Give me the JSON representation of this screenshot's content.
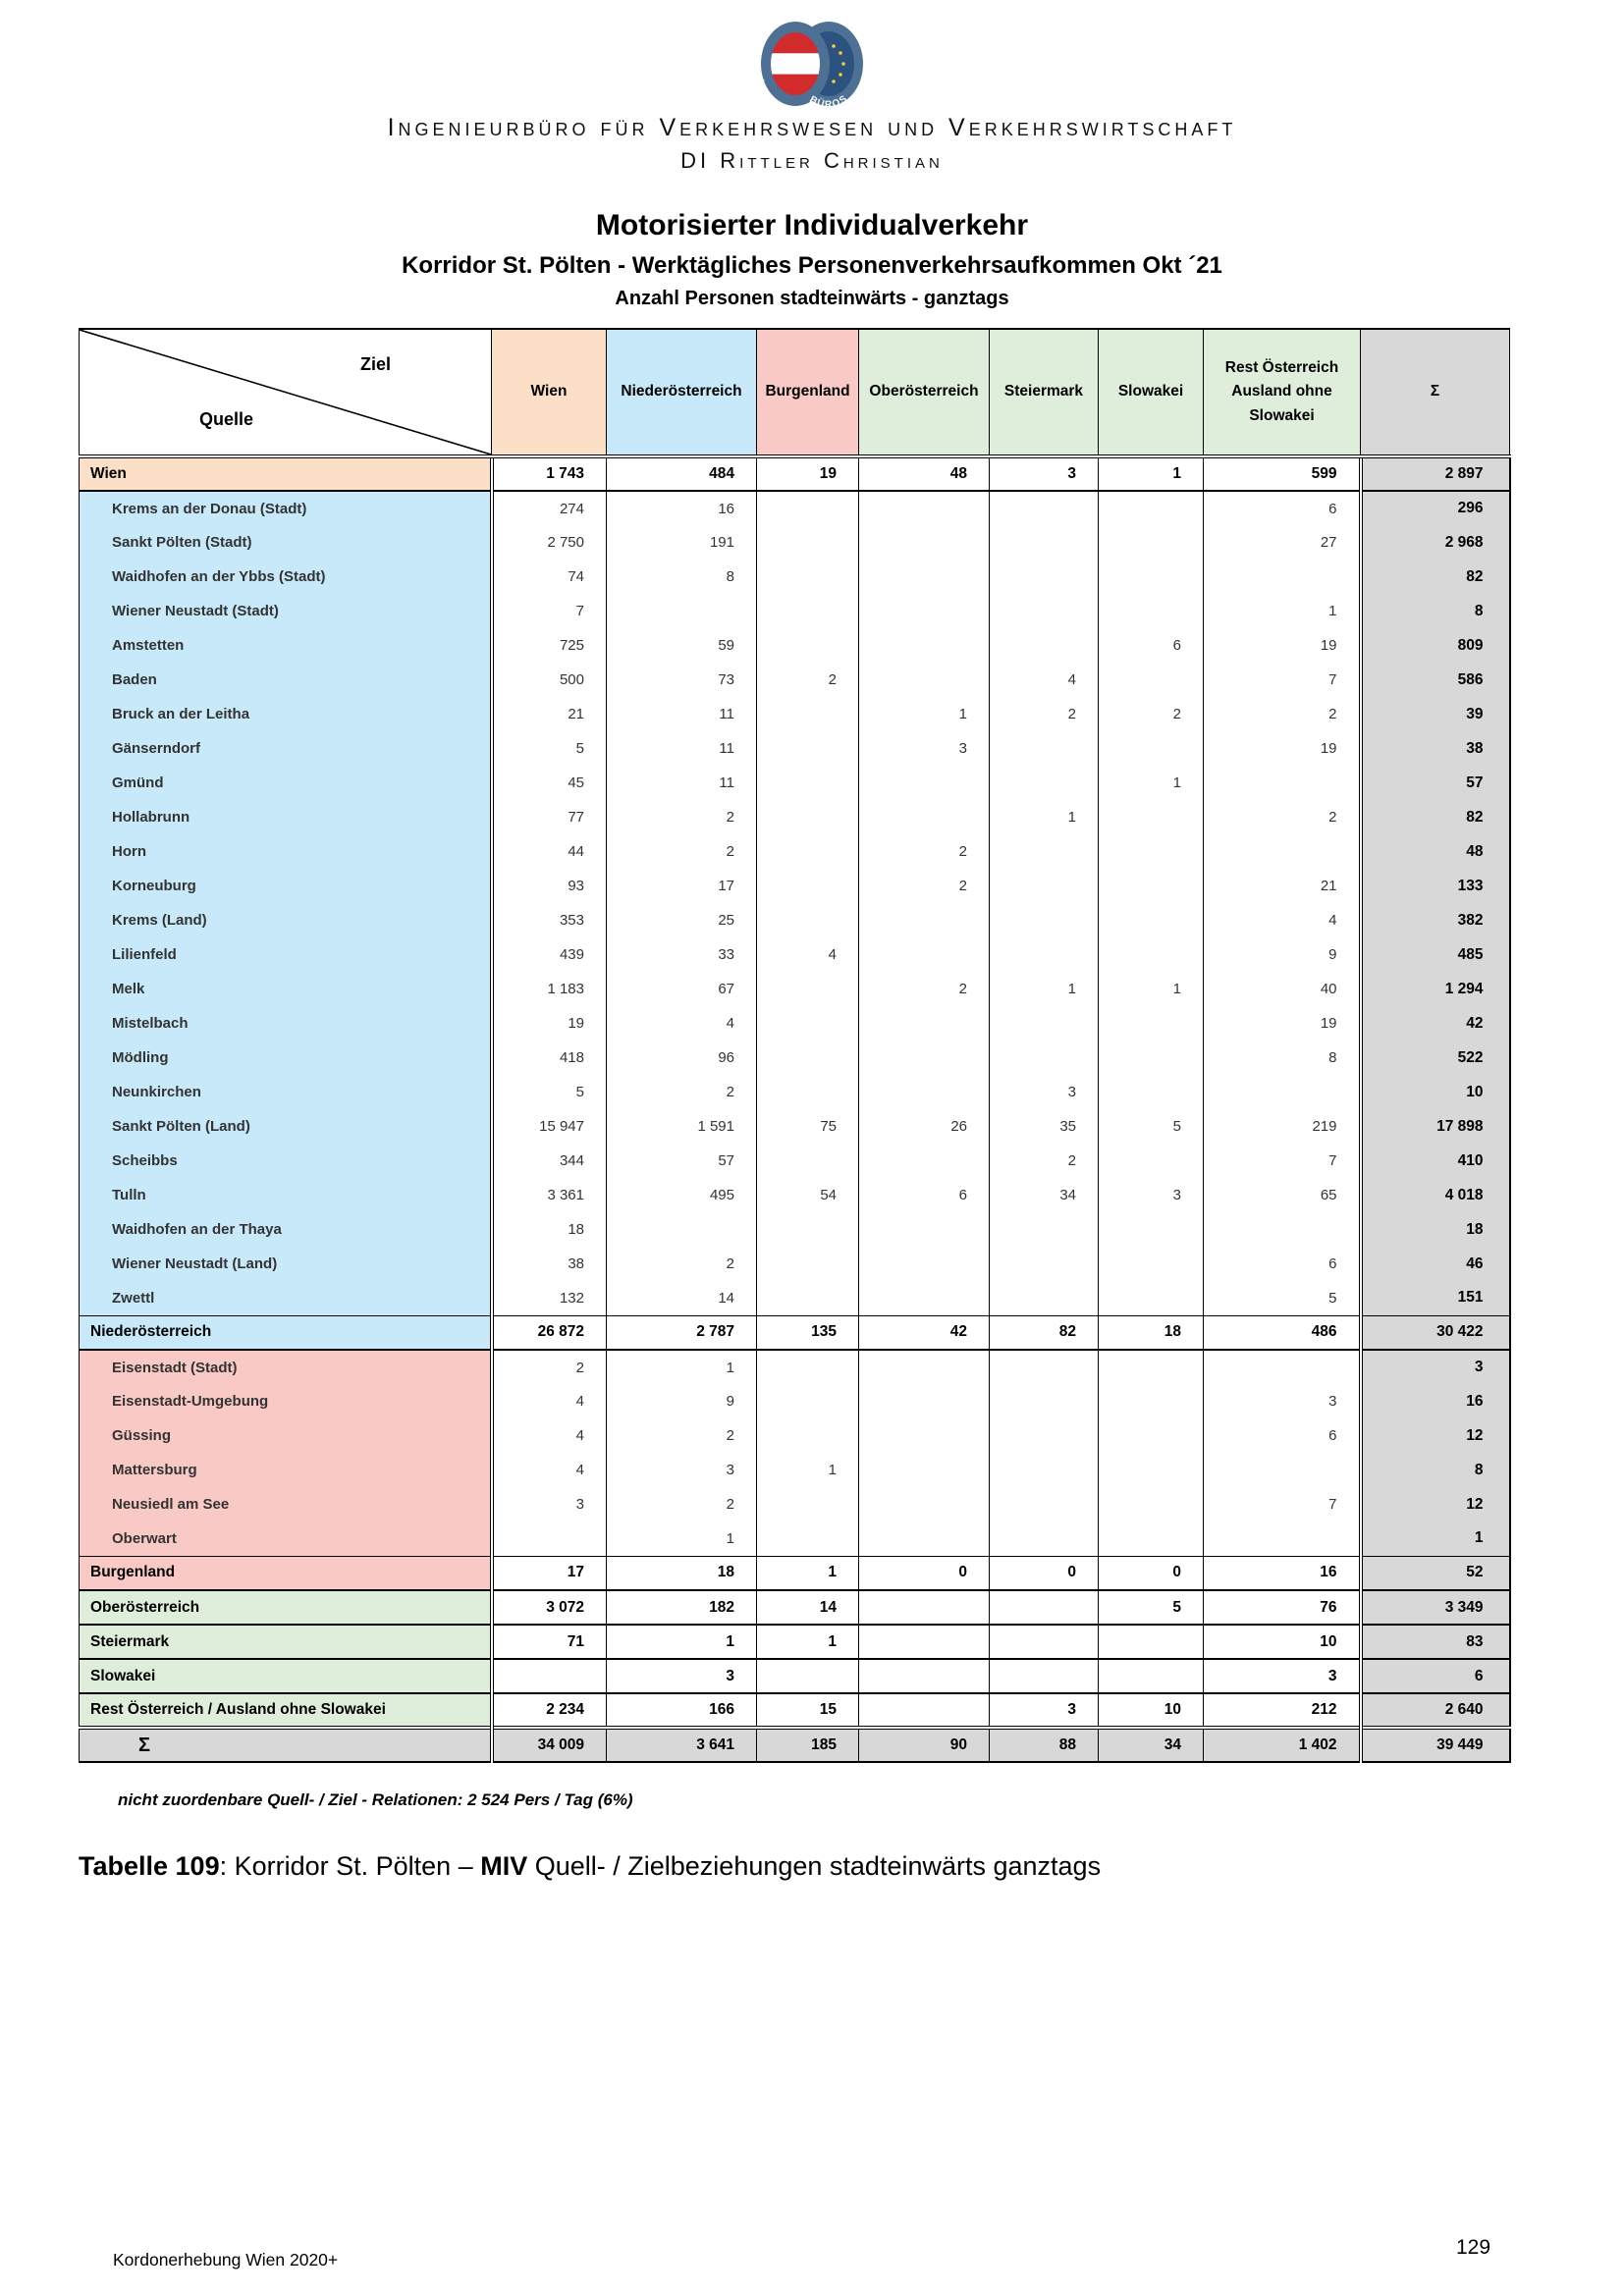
{
  "branding": {
    "logo": {
      "left_arc_text": "INGENIEUR",
      "right_arc_text": "BÜROS"
    },
    "company_line1": "Ingenieurbüro für Verkehrswesen und Verkehrswirtschaft",
    "company_line2": "DI Rittler Christian"
  },
  "titles": {
    "main": "Motorisierter Individualverkehr",
    "subtitle": "Korridor St. Pölten - Werktägliches Personenverkehrsaufkommen Okt ´21",
    "subsubtitle": "Anzahl Personen stadteinwärts - ganztags"
  },
  "colors": {
    "wien": "#FBE0C7",
    "noe": "#C8E9FA",
    "bgl": "#F9C9C6",
    "green": "#DFEEDA",
    "total": "#D8D8D8"
  },
  "table": {
    "corner": {
      "top_right": "Ziel",
      "bottom_left": "Quelle"
    },
    "columns": [
      {
        "label": "Wien",
        "group": "wien"
      },
      {
        "label": "Niederösterreich",
        "group": "noe"
      },
      {
        "label": "Burgenland",
        "group": "bgl"
      },
      {
        "label": "Oberösterreich",
        "group": "green"
      },
      {
        "label": "Steiermark",
        "group": "green"
      },
      {
        "label": "Slowakei",
        "group": "green"
      },
      {
        "label": "Rest Österreich\nAusland ohne\nSlowakei",
        "group": "green"
      },
      {
        "label": "Σ",
        "group": "total"
      }
    ],
    "rows": [
      {
        "label": "Wien",
        "group": "wien",
        "summary": true,
        "values": [
          "1 743",
          "484",
          "19",
          "48",
          "3",
          "1",
          "599"
        ],
        "sum": "2 897"
      },
      {
        "label": "Krems an der Donau (Stadt)",
        "group": "noe",
        "summary": false,
        "values": [
          "274",
          "16",
          "",
          "",
          "",
          "",
          "6"
        ],
        "sum": "296"
      },
      {
        "label": "Sankt Pölten (Stadt)",
        "group": "noe",
        "summary": false,
        "values": [
          "2 750",
          "191",
          "",
          "",
          "",
          "",
          "27"
        ],
        "sum": "2 968"
      },
      {
        "label": "Waidhofen an der Ybbs (Stadt)",
        "group": "noe",
        "summary": false,
        "values": [
          "74",
          "8",
          "",
          "",
          "",
          "",
          ""
        ],
        "sum": "82"
      },
      {
        "label": "Wiener Neustadt (Stadt)",
        "group": "noe",
        "summary": false,
        "values": [
          "7",
          "",
          "",
          "",
          "",
          "",
          "1"
        ],
        "sum": "8"
      },
      {
        "label": "Amstetten",
        "group": "noe",
        "summary": false,
        "values": [
          "725",
          "59",
          "",
          "",
          "",
          "6",
          "19"
        ],
        "sum": "809"
      },
      {
        "label": "Baden",
        "group": "noe",
        "summary": false,
        "values": [
          "500",
          "73",
          "2",
          "",
          "4",
          "",
          "7"
        ],
        "sum": "586"
      },
      {
        "label": "Bruck an der Leitha",
        "group": "noe",
        "summary": false,
        "values": [
          "21",
          "11",
          "",
          "1",
          "2",
          "2",
          "2"
        ],
        "sum": "39"
      },
      {
        "label": "Gänserndorf",
        "group": "noe",
        "summary": false,
        "values": [
          "5",
          "11",
          "",
          "3",
          "",
          "",
          "19"
        ],
        "sum": "38"
      },
      {
        "label": "Gmünd",
        "group": "noe",
        "summary": false,
        "values": [
          "45",
          "11",
          "",
          "",
          "",
          "1",
          ""
        ],
        "sum": "57"
      },
      {
        "label": "Hollabrunn",
        "group": "noe",
        "summary": false,
        "values": [
          "77",
          "2",
          "",
          "",
          "1",
          "",
          "2"
        ],
        "sum": "82"
      },
      {
        "label": "Horn",
        "group": "noe",
        "summary": false,
        "values": [
          "44",
          "2",
          "",
          "2",
          "",
          "",
          ""
        ],
        "sum": "48"
      },
      {
        "label": "Korneuburg",
        "group": "noe",
        "summary": false,
        "values": [
          "93",
          "17",
          "",
          "2",
          "",
          "",
          "21"
        ],
        "sum": "133"
      },
      {
        "label": "Krems (Land)",
        "group": "noe",
        "summary": false,
        "values": [
          "353",
          "25",
          "",
          "",
          "",
          "",
          "4"
        ],
        "sum": "382"
      },
      {
        "label": "Lilienfeld",
        "group": "noe",
        "summary": false,
        "values": [
          "439",
          "33",
          "4",
          "",
          "",
          "",
          "9"
        ],
        "sum": "485"
      },
      {
        "label": "Melk",
        "group": "noe",
        "summary": false,
        "values": [
          "1 183",
          "67",
          "",
          "2",
          "1",
          "1",
          "40"
        ],
        "sum": "1 294"
      },
      {
        "label": "Mistelbach",
        "group": "noe",
        "summary": false,
        "values": [
          "19",
          "4",
          "",
          "",
          "",
          "",
          "19"
        ],
        "sum": "42"
      },
      {
        "label": "Mödling",
        "group": "noe",
        "summary": false,
        "values": [
          "418",
          "96",
          "",
          "",
          "",
          "",
          "8"
        ],
        "sum": "522"
      },
      {
        "label": "Neunkirchen",
        "group": "noe",
        "summary": false,
        "values": [
          "5",
          "2",
          "",
          "",
          "3",
          "",
          ""
        ],
        "sum": "10"
      },
      {
        "label": "Sankt Pölten (Land)",
        "group": "noe",
        "summary": false,
        "values": [
          "15 947",
          "1 591",
          "75",
          "26",
          "35",
          "5",
          "219"
        ],
        "sum": "17 898"
      },
      {
        "label": "Scheibbs",
        "group": "noe",
        "summary": false,
        "values": [
          "344",
          "57",
          "",
          "",
          "2",
          "",
          "7"
        ],
        "sum": "410"
      },
      {
        "label": "Tulln",
        "group": "noe",
        "summary": false,
        "values": [
          "3 361",
          "495",
          "54",
          "6",
          "34",
          "3",
          "65"
        ],
        "sum": "4 018"
      },
      {
        "label": "Waidhofen an der Thaya",
        "group": "noe",
        "summary": false,
        "values": [
          "18",
          "",
          "",
          "",
          "",
          "",
          ""
        ],
        "sum": "18"
      },
      {
        "label": "Wiener Neustadt (Land)",
        "group": "noe",
        "summary": false,
        "values": [
          "38",
          "2",
          "",
          "",
          "",
          "",
          "6"
        ],
        "sum": "46"
      },
      {
        "label": "Zwettl",
        "group": "noe",
        "summary": false,
        "values": [
          "132",
          "14",
          "",
          "",
          "",
          "",
          "5"
        ],
        "sum": "151"
      },
      {
        "label": "Niederösterreich",
        "group": "noe",
        "summary": true,
        "values": [
          "26 872",
          "2 787",
          "135",
          "42",
          "82",
          "18",
          "486"
        ],
        "sum": "30 422"
      },
      {
        "label": "Eisenstadt (Stadt)",
        "group": "bgl",
        "summary": false,
        "values": [
          "2",
          "1",
          "",
          "",
          "",
          "",
          ""
        ],
        "sum": "3"
      },
      {
        "label": "Eisenstadt-Umgebung",
        "group": "bgl",
        "summary": false,
        "values": [
          "4",
          "9",
          "",
          "",
          "",
          "",
          "3"
        ],
        "sum": "16"
      },
      {
        "label": "Güssing",
        "group": "bgl",
        "summary": false,
        "values": [
          "4",
          "2",
          "",
          "",
          "",
          "",
          "6"
        ],
        "sum": "12"
      },
      {
        "label": "Mattersburg",
        "group": "bgl",
        "summary": false,
        "values": [
          "4",
          "3",
          "1",
          "",
          "",
          "",
          ""
        ],
        "sum": "8"
      },
      {
        "label": "Neusiedl am See",
        "group": "bgl",
        "summary": false,
        "values": [
          "3",
          "2",
          "",
          "",
          "",
          "",
          "7"
        ],
        "sum": "12"
      },
      {
        "label": "Oberwart",
        "group": "bgl",
        "summary": false,
        "values": [
          "",
          "1",
          "",
          "",
          "",
          "",
          ""
        ],
        "sum": "1"
      },
      {
        "label": "Burgenland",
        "group": "bgl",
        "summary": true,
        "values": [
          "17",
          "18",
          "1",
          "0",
          "0",
          "0",
          "16"
        ],
        "sum": "52"
      },
      {
        "label": "Oberösterreich",
        "group": "green",
        "summary": true,
        "values": [
          "3 072",
          "182",
          "14",
          "",
          "",
          "5",
          "76"
        ],
        "sum": "3 349"
      },
      {
        "label": "Steiermark",
        "group": "green2",
        "summary": true,
        "values": [
          "71",
          "1",
          "1",
          "",
          "",
          "",
          "10"
        ],
        "sum": "83"
      },
      {
        "label": "Slowakei",
        "group": "green3",
        "summary": true,
        "values": [
          "",
          "3",
          "",
          "",
          "",
          "",
          "3"
        ],
        "sum": "6"
      },
      {
        "label": "Rest Österreich / Ausland ohne Slowakei",
        "group": "green4",
        "summary": true,
        "values": [
          "2 234",
          "166",
          "15",
          "",
          "3",
          "10",
          "212"
        ],
        "sum": "2 640"
      },
      {
        "label": "Σ",
        "group": "total",
        "summary": true,
        "values": [
          "34 009",
          "3 641",
          "185",
          "90",
          "88",
          "34",
          "1 402"
        ],
        "sum": "39 449"
      }
    ]
  },
  "footnote": "nicht zuordenbare Quell- / Ziel - Relationen: 2 524 Pers / Tag (6%)",
  "caption": {
    "label": "Tabelle 109",
    "text_before_bold": ": Korridor St. Pölten – ",
    "bold": "MIV",
    "text_after_bold": " Quell- / Zielbeziehungen stadteinwärts ganztags"
  },
  "footer": {
    "left": "Kordonerhebung Wien 2020+",
    "page_number": "129"
  }
}
